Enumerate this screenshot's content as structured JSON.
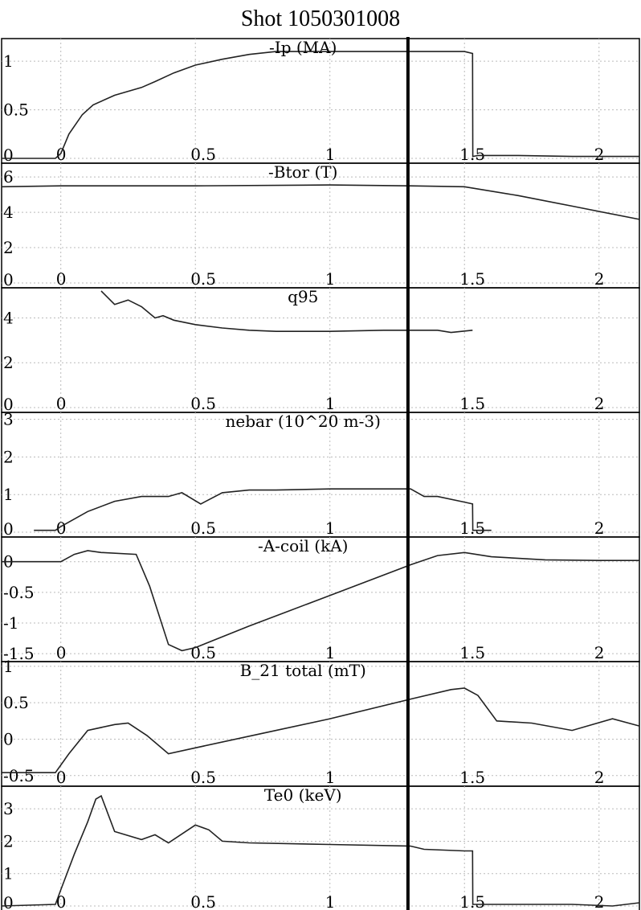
{
  "title": "Shot 1050301008",
  "time_marker": 1.29,
  "x_ticks": [
    0,
    0.5,
    1,
    1.5,
    2
  ],
  "x_tick_labels": [
    "0",
    "0.5",
    "1",
    "1.5",
    "2"
  ],
  "chart_data": [
    {
      "type": "line",
      "title": "-Ip (MA)",
      "xlim": [
        -0.22,
        2.15
      ],
      "ylim": [
        0,
        1.2
      ],
      "y_ticks": [
        0,
        0.5,
        1
      ],
      "y_tick_labels": [
        "0",
        "0.5",
        "1"
      ],
      "x": [
        -0.22,
        -0.02,
        0,
        0.03,
        0.08,
        0.12,
        0.2,
        0.3,
        0.35,
        0.42,
        0.5,
        0.6,
        0.7,
        0.8,
        1.0,
        1.2,
        1.4,
        1.5,
        1.53,
        1.531,
        1.55,
        1.7,
        1.9,
        2.15
      ],
      "values": [
        0,
        0,
        0.05,
        0.25,
        0.45,
        0.55,
        0.65,
        0.73,
        0.79,
        0.88,
        0.96,
        1.02,
        1.07,
        1.1,
        1.1,
        1.1,
        1.1,
        1.1,
        1.08,
        0.02,
        0.03,
        0.03,
        0.02,
        0.02
      ]
    },
    {
      "type": "line",
      "title": "-Btor (T)",
      "xlim": [
        -0.22,
        2.15
      ],
      "ylim": [
        0,
        6.6
      ],
      "y_ticks": [
        0,
        2,
        4,
        6
      ],
      "y_tick_labels": [
        "0",
        "2",
        "4",
        "6"
      ],
      "x": [
        -0.22,
        0,
        0.5,
        1.0,
        1.3,
        1.5,
        1.7,
        1.9,
        2.15
      ],
      "values": [
        5.45,
        5.5,
        5.5,
        5.55,
        5.5,
        5.45,
        4.95,
        4.35,
        3.6
      ]
    },
    {
      "type": "line",
      "title": "q95",
      "xlim": [
        -0.22,
        2.15
      ],
      "ylim": [
        0,
        5.2
      ],
      "y_ticks": [
        0,
        2,
        4
      ],
      "y_tick_labels": [
        "0",
        "2",
        "4"
      ],
      "x": [
        0.15,
        0.2,
        0.25,
        0.3,
        0.35,
        0.38,
        0.42,
        0.5,
        0.6,
        0.7,
        0.8,
        1.0,
        1.2,
        1.4,
        1.45,
        1.53
      ],
      "values": [
        5.2,
        4.6,
        4.8,
        4.5,
        4.0,
        4.1,
        3.9,
        3.7,
        3.55,
        3.45,
        3.4,
        3.4,
        3.45,
        3.45,
        3.35,
        3.45
      ]
    },
    {
      "type": "line",
      "title": "nebar (10^20 m-3)",
      "xlim": [
        -0.22,
        2.15
      ],
      "ylim": [
        0,
        3.1
      ],
      "y_ticks": [
        0,
        1,
        2,
        3
      ],
      "y_tick_labels": [
        "0",
        "1",
        "2",
        "3"
      ],
      "x": [
        -0.1,
        -0.02,
        0,
        0.1,
        0.2,
        0.3,
        0.4,
        0.45,
        0.52,
        0.6,
        0.7,
        0.8,
        1.0,
        1.2,
        1.3,
        1.35,
        1.4,
        1.5,
        1.53,
        1.531,
        1.6
      ],
      "values": [
        0.05,
        0.05,
        0.15,
        0.55,
        0.82,
        0.95,
        0.95,
        1.05,
        0.75,
        1.05,
        1.12,
        1.12,
        1.15,
        1.15,
        1.15,
        0.95,
        0.95,
        0.8,
        0.75,
        0.05,
        0.05
      ]
    },
    {
      "type": "line",
      "title": "-A-coil (kA)",
      "xlim": [
        -0.22,
        2.15
      ],
      "ylim": [
        -1.55,
        0.35
      ],
      "y_ticks": [
        -1.5,
        -1,
        -0.5,
        0
      ],
      "y_tick_labels": [
        "-1.5",
        "-1",
        "-0.5",
        "0"
      ],
      "x": [
        -0.22,
        0,
        0.05,
        0.1,
        0.15,
        0.28,
        0.33,
        0.4,
        0.45,
        0.5,
        0.7,
        1.0,
        1.3,
        1.4,
        1.5,
        1.6,
        1.8,
        2.0,
        2.15
      ],
      "values": [
        0.0,
        0.0,
        0.12,
        0.18,
        0.15,
        0.12,
        -0.4,
        -1.35,
        -1.45,
        -1.4,
        -1.05,
        -0.55,
        -0.05,
        0.1,
        0.15,
        0.08,
        0.03,
        0.02,
        0.02
      ]
    },
    {
      "type": "line",
      "title": "B_21 total (mT)",
      "xlim": [
        -0.22,
        2.15
      ],
      "ylim": [
        -0.58,
        1.02
      ],
      "y_ticks": [
        -0.5,
        0,
        0.5,
        1
      ],
      "y_tick_labels": [
        "-0.5",
        "0",
        "0.5",
        "1"
      ],
      "x": [
        -0.22,
        -0.02,
        0.03,
        0.1,
        0.2,
        0.25,
        0.32,
        0.4,
        0.5,
        0.75,
        1.0,
        1.3,
        1.45,
        1.5,
        1.55,
        1.62,
        1.75,
        1.9,
        2.05,
        2.15
      ],
      "values": [
        -0.46,
        -0.46,
        -0.2,
        0.12,
        0.2,
        0.22,
        0.05,
        -0.2,
        -0.12,
        0.08,
        0.28,
        0.55,
        0.68,
        0.7,
        0.6,
        0.25,
        0.22,
        0.12,
        0.28,
        0.18
      ]
    },
    {
      "type": "line",
      "title": "Te0 (keV)",
      "xlim": [
        -0.22,
        2.15
      ],
      "ylim": [
        0,
        3.6
      ],
      "y_ticks": [
        0,
        1,
        2,
        3
      ],
      "y_tick_labels": [
        "0",
        "1",
        "2",
        "3"
      ],
      "x": [
        -0.22,
        -0.02,
        0,
        0.05,
        0.1,
        0.13,
        0.15,
        0.2,
        0.3,
        0.35,
        0.4,
        0.5,
        0.55,
        0.6,
        0.7,
        1.0,
        1.3,
        1.35,
        1.5,
        1.53,
        1.531,
        1.7,
        1.9,
        2.05,
        2.15
      ],
      "values": [
        0,
        0.05,
        0.5,
        1.6,
        2.6,
        3.3,
        3.4,
        2.3,
        2.05,
        2.2,
        1.95,
        2.5,
        2.35,
        2.0,
        1.95,
        1.9,
        1.85,
        1.75,
        1.7,
        1.7,
        0.05,
        0.05,
        0.05,
        0.0,
        0.1
      ]
    }
  ]
}
